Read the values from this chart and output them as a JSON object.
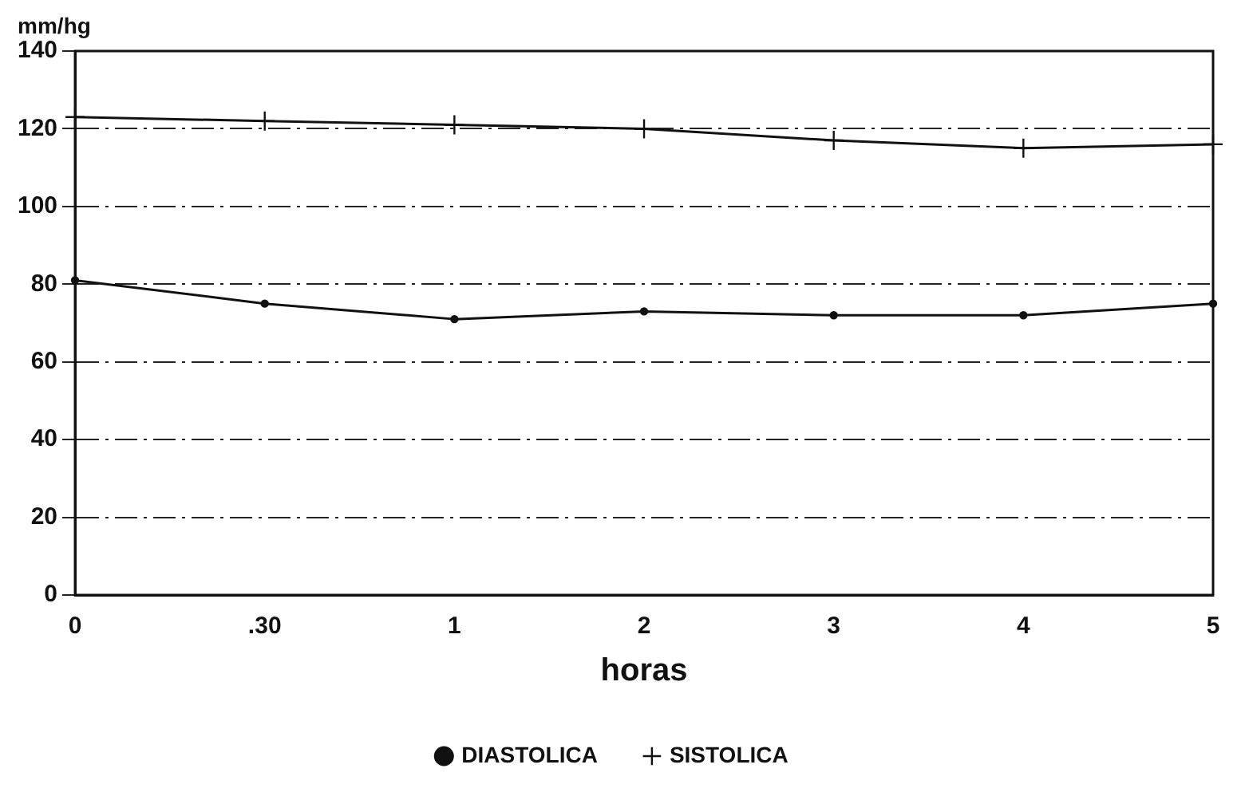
{
  "chart_data": {
    "type": "line",
    "ylabel": "mm/hg",
    "xlabel": "horas",
    "categories": [
      "0",
      ".30",
      "1",
      "2",
      "3",
      "4",
      "5"
    ],
    "series": [
      {
        "name": "DIASTOLICA",
        "color": "#111111",
        "marker": "circle",
        "values": [
          81,
          75,
          71,
          73,
          72,
          72,
          75
        ]
      },
      {
        "name": "SISTOLICA",
        "color": "#111111",
        "marker": "cross",
        "values": [
          123,
          122,
          121,
          120,
          117,
          115,
          116
        ]
      }
    ],
    "ylim": [
      0,
      140
    ],
    "yticks": [
      0,
      20,
      40,
      60,
      80,
      100,
      120,
      140
    ],
    "grid": "y",
    "legend": "bottom",
    "line_style": "solid"
  }
}
